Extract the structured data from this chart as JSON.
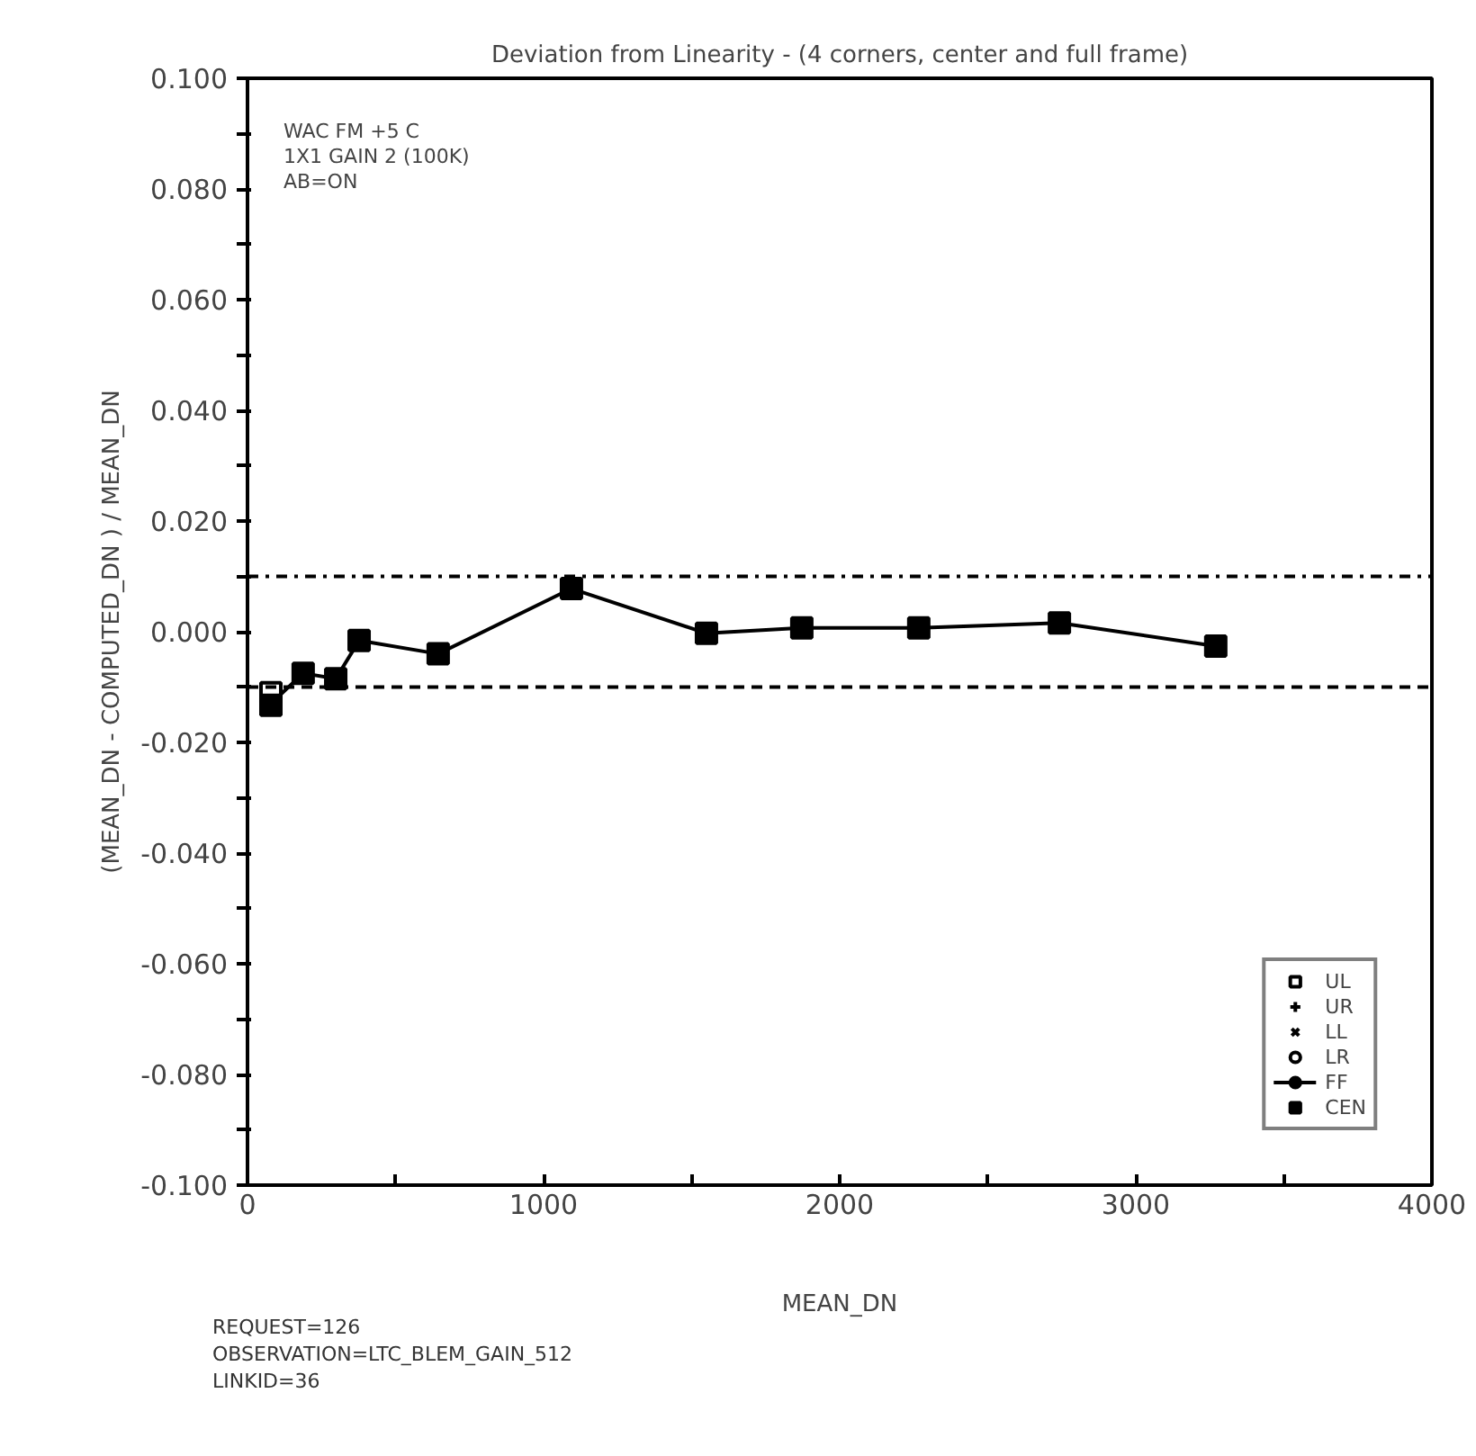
{
  "chart_data": {
    "type": "scatter",
    "title": "Deviation from Linearity - (4 corners, center and full frame)",
    "xlabel": "MEAN_DN",
    "ylabel": "(MEAN_DN - COMPUTED_DN ) / MEAN_DN",
    "x": [
      79,
      188,
      298,
      377,
      644,
      1094,
      1550,
      1872,
      2267,
      2742,
      3270
    ],
    "series": [
      {
        "name": "UL",
        "marker": "square_open",
        "color": "#000000",
        "values": [
          -0.011,
          null,
          null,
          null,
          null,
          null,
          null,
          null,
          null,
          null,
          null
        ]
      },
      {
        "name": "UR",
        "marker": "cross",
        "color": "#000000",
        "values": [
          null,
          null,
          null,
          null,
          null,
          null,
          null,
          null,
          null,
          null,
          null
        ]
      },
      {
        "name": "LL",
        "marker": "x",
        "color": "#000000",
        "values": [
          null,
          null,
          null,
          null,
          null,
          null,
          null,
          null,
          null,
          null,
          null
        ]
      },
      {
        "name": "LR",
        "marker": "circle_open",
        "color": "#000000",
        "values": [
          null,
          null,
          null,
          null,
          null,
          null,
          null,
          null,
          null,
          null,
          null
        ]
      },
      {
        "name": "FF",
        "type": "line",
        "marker": "circle",
        "color": "#000000",
        "values": [
          -0.013,
          -0.0075,
          -0.0085,
          -0.0016,
          -0.004,
          0.0078,
          -0.0003,
          0.0007,
          0.0007,
          0.0016,
          -0.0026
        ]
      },
      {
        "name": "CEN",
        "marker": "square",
        "color": "#000000",
        "values": [
          -0.0133,
          -0.0075,
          -0.0085,
          -0.0016,
          -0.004,
          0.0078,
          -0.0003,
          0.0007,
          0.0007,
          0.0016,
          -0.0026
        ]
      }
    ],
    "xlim": [
      0,
      4000
    ],
    "xticks": [
      0,
      {
        "value": 500,
        "label": null
      },
      1000,
      {
        "value": 1500,
        "label": null
      },
      2000,
      {
        "value": 2500,
        "label": null
      },
      3000,
      {
        "value": 3500,
        "label": null
      },
      4000
    ],
    "ylim": [
      -0.1,
      0.1
    ],
    "yticks": [
      {
        "value": -0.1,
        "label": "-0.100"
      },
      {
        "value": -0.09,
        "label": null
      },
      {
        "value": -0.08,
        "label": "-0.080"
      },
      {
        "value": -0.07,
        "label": null
      },
      {
        "value": -0.06,
        "label": "-0.060"
      },
      {
        "value": -0.05,
        "label": null
      },
      {
        "value": -0.04,
        "label": "-0.040"
      },
      {
        "value": -0.03,
        "label": null
      },
      {
        "value": -0.02,
        "label": "-0.020"
      },
      {
        "value": -0.01,
        "label": null
      },
      {
        "value": 0,
        "label": "0.000"
      },
      {
        "value": 0.01,
        "label": null
      },
      {
        "value": 0.02,
        "label": "0.020"
      },
      {
        "value": 0.03,
        "label": null
      },
      {
        "value": 0.04,
        "label": "0.040"
      },
      {
        "value": 0.05,
        "label": null
      },
      {
        "value": 0.06,
        "label": "0.060"
      },
      {
        "value": 0.07,
        "label": null
      },
      {
        "value": 0.08,
        "label": "0.080"
      },
      {
        "value": 0.09,
        "label": null
      },
      {
        "value": 0.1,
        "label": "0.100"
      }
    ],
    "ref_lines": [
      {
        "axis": "y",
        "value": 0.01,
        "line_style": "dashdot",
        "color": "#000000"
      },
      {
        "axis": "y",
        "value": -0.01,
        "line_style": "dashed",
        "color": "#000000"
      }
    ],
    "annotations": [
      "WAC FM +5 C",
      "1X1 GAIN 2 (100K)",
      "AB=ON",
      "REQUEST=126",
      "OBSERVATION=LTC_BLEM_GAIN_512",
      "LINKID=36"
    ],
    "grid": false,
    "legend": "bottom right"
  }
}
